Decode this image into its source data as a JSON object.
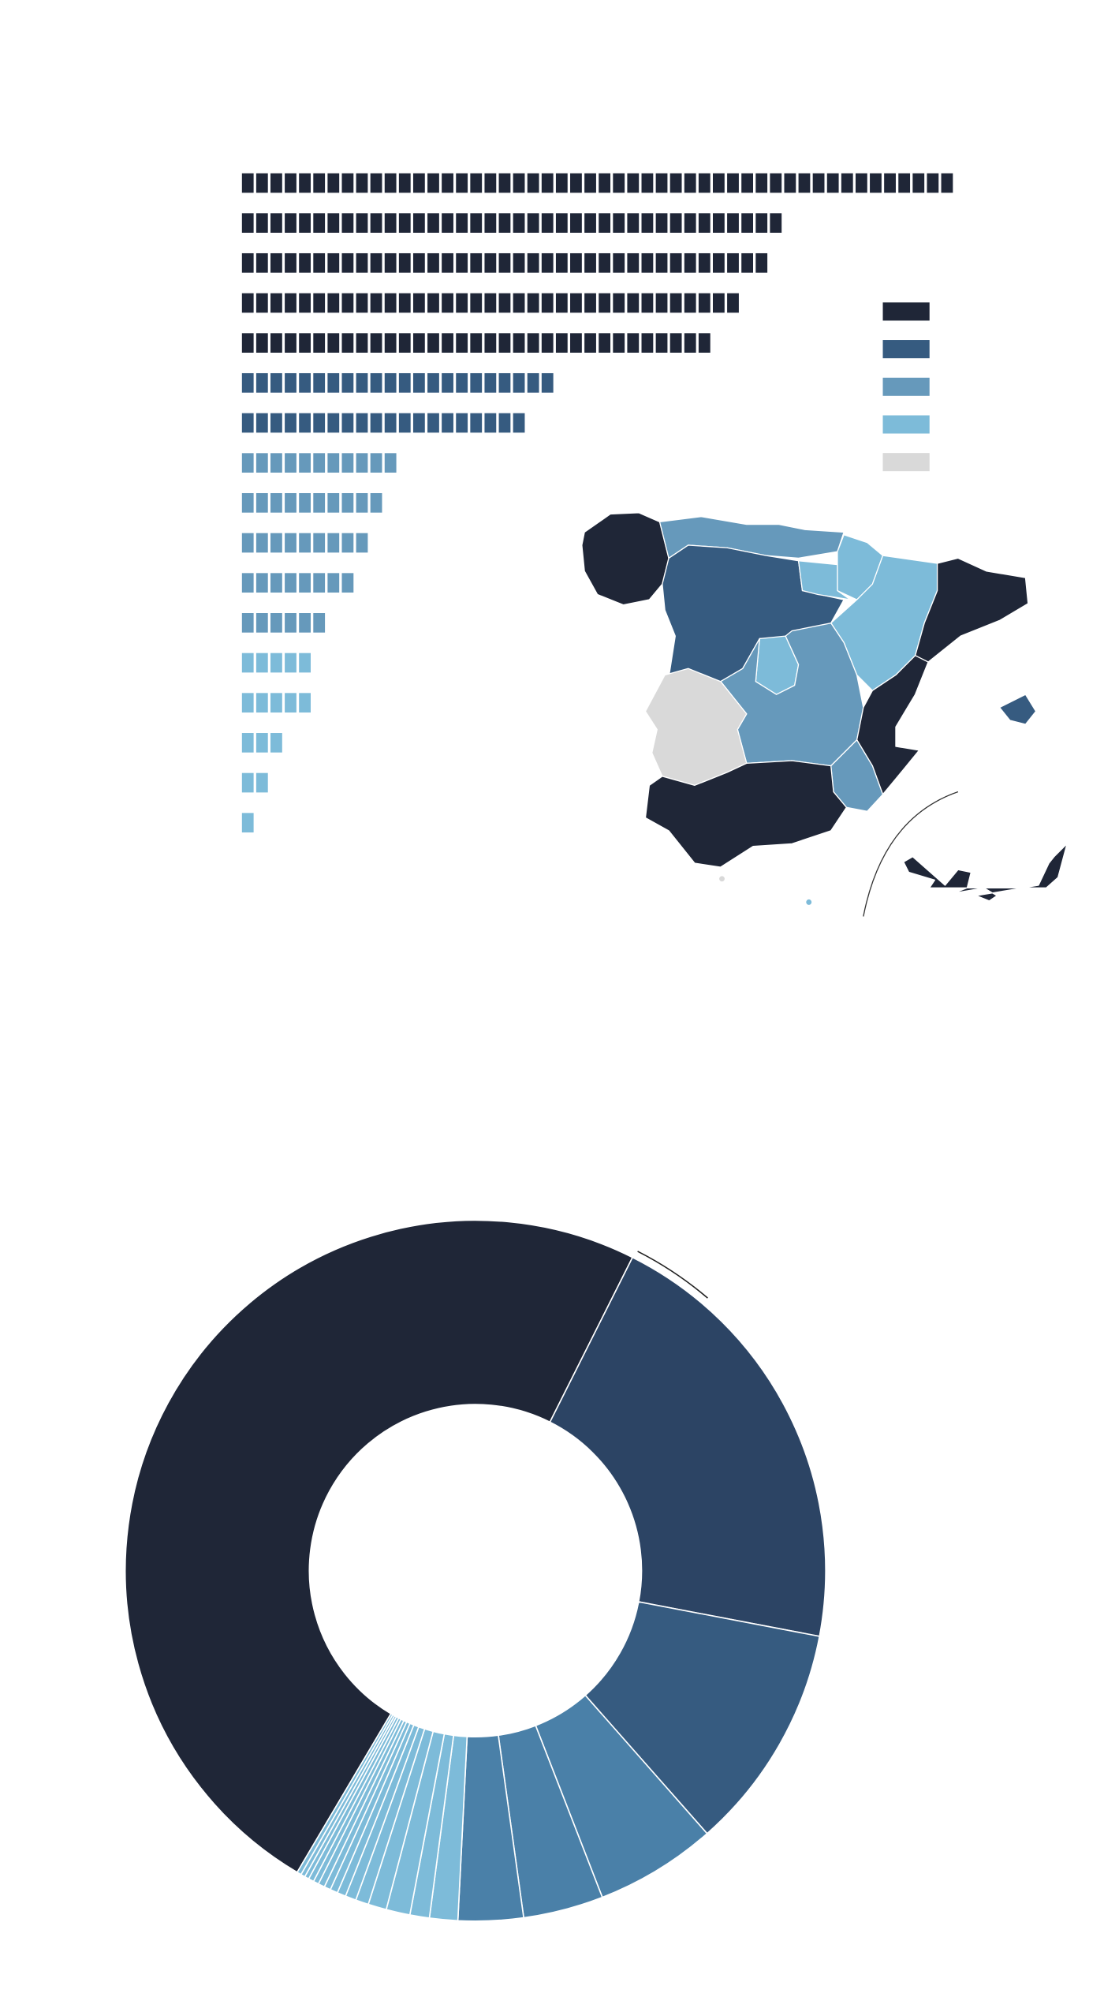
{
  "chart_data": [
    {
      "type": "waffle",
      "values": [
        50,
        38,
        37,
        35,
        33,
        22,
        20,
        11,
        10,
        9,
        8,
        6,
        5,
        5,
        3,
        2,
        1
      ],
      "colors": [
        "#1f2637",
        "#1f2637",
        "#1f2637",
        "#1f2637",
        "#1f2637",
        "#365b80",
        "#365b80",
        "#6699bb",
        "#6699bb",
        "#6699bb",
        "#6699bb",
        "#6699bb",
        "#7dbbd9",
        "#7dbbd9",
        "#7dbbd9",
        "#7dbbd9",
        "#7dbbd9"
      ]
    },
    {
      "type": "map",
      "legend_colors": [
        "#1f2637",
        "#365b80",
        "#6699bb",
        "#7dbbd9",
        "#d9d9d9"
      ],
      "region_colors": [
        "#1f2637",
        "#6699bb",
        "#365b80",
        "#7dbbd9",
        "#7dbbd9",
        "#7dbbd9",
        "#1f2637",
        "#7dbbd9",
        "#6699bb",
        "#d9d9d9",
        "#1f2637",
        "#6699bb",
        "#1f2637",
        "#365b80",
        "#1f2637",
        "#d9d9d9",
        "#7dbbd9"
      ]
    },
    {
      "type": "donut",
      "values": [
        48.9,
        20.6,
        10.5,
        5.6,
        3.7,
        3.0,
        1.3,
        0.9,
        1.1,
        0.85,
        0.6,
        0.5,
        0.4,
        0.35,
        0.3,
        0.3,
        0.25,
        0.25,
        0.2,
        0.2,
        0.2
      ],
      "colors": [
        "#1f2637",
        "#2c4464",
        "#365b80",
        "#4a80a8",
        "#4a80a8",
        "#4a80a8",
        "#7dbbd9",
        "#7dbbd9",
        "#7dbbd9",
        "#7dbbd9",
        "#7dbbd9",
        "#7dbbd9",
        "#7dbbd9",
        "#7dbbd9",
        "#7dbbd9",
        "#7dbbd9",
        "#7dbbd9",
        "#7dbbd9",
        "#7dbbd9",
        "#7dbbd9",
        "#7dbbd9"
      ]
    }
  ]
}
